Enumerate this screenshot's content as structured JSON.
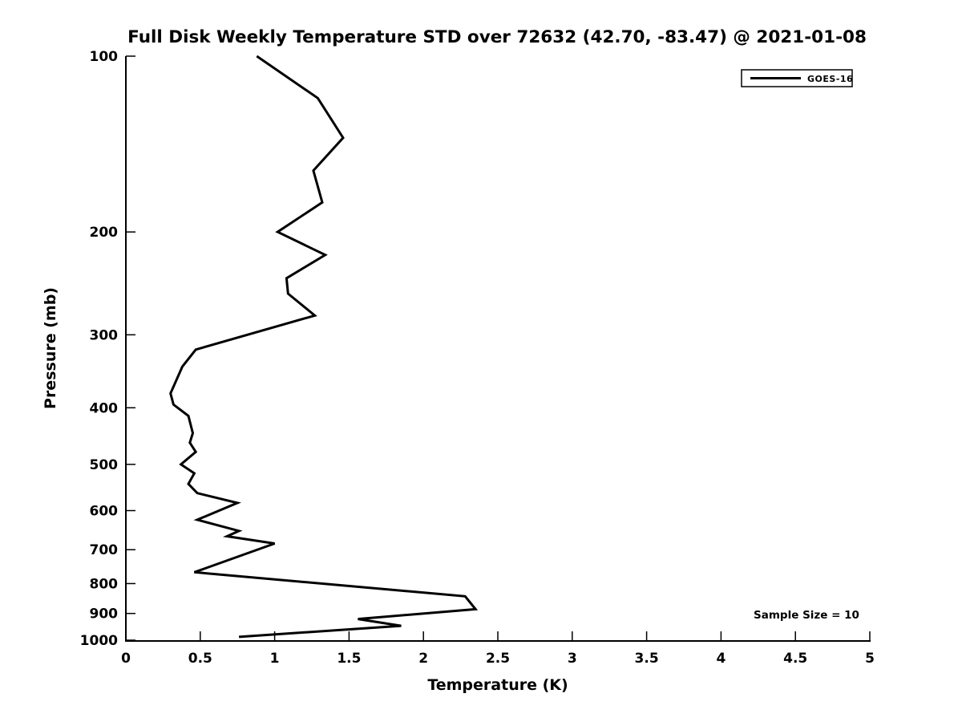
{
  "figure": {
    "background_color": "#ffffff",
    "foreground_color": "#000000"
  },
  "chart_data": {
    "type": "line",
    "title": "Full Disk Weekly Temperature STD over 72632 (42.70, -83.47) @ 2021-01-08",
    "xlabel": "Temperature (K)",
    "ylabel": "Pressure (mb)",
    "x_scale": "linear",
    "y_scale": "log",
    "y_inverted": true,
    "xlim": [
      0,
      5
    ],
    "ylim": [
      100,
      1000
    ],
    "x_ticks": [
      0,
      0.5,
      1,
      1.5,
      2,
      2.5,
      3,
      3.5,
      4,
      4.5,
      5
    ],
    "x_tick_labels": [
      "0",
      "0.5",
      "1",
      "1.5",
      "2",
      "2.5",
      "3",
      "3.5",
      "4",
      "4.5",
      "5"
    ],
    "y_ticks": [
      100,
      200,
      300,
      400,
      500,
      600,
      700,
      800,
      900,
      1000
    ],
    "y_tick_labels": [
      "100",
      "200",
      "300",
      "400",
      "500",
      "600",
      "700",
      "800",
      "900",
      "1000"
    ],
    "grid": false,
    "legend": {
      "position": "top-right",
      "entries": [
        {
          "label": "GOES-16",
          "color": "#000000",
          "line_width": 3
        }
      ]
    },
    "annotation": "Sample Size = 10",
    "series": [
      {
        "name": "GOES-16",
        "color": "#000000",
        "points_format": "[temperature_std_K, pressure_mb]",
        "points": [
          [
            0.88,
            100
          ],
          [
            1.29,
            118
          ],
          [
            1.46,
            138
          ],
          [
            1.26,
            157
          ],
          [
            1.32,
            178
          ],
          [
            1.02,
            200
          ],
          [
            1.34,
            219
          ],
          [
            1.08,
            240
          ],
          [
            1.09,
            255
          ],
          [
            1.27,
            278
          ],
          [
            0.47,
            318
          ],
          [
            0.38,
            340
          ],
          [
            0.3,
            378
          ],
          [
            0.32,
            395
          ],
          [
            0.42,
            413
          ],
          [
            0.45,
            442
          ],
          [
            0.43,
            459
          ],
          [
            0.47,
            476
          ],
          [
            0.37,
            500
          ],
          [
            0.46,
            518
          ],
          [
            0.42,
            540
          ],
          [
            0.48,
            560
          ],
          [
            0.75,
            582
          ],
          [
            0.48,
            622
          ],
          [
            0.76,
            650
          ],
          [
            0.68,
            664
          ],
          [
            1.0,
            683
          ],
          [
            0.46,
            765
          ],
          [
            2.28,
            841
          ],
          [
            2.35,
            885
          ],
          [
            1.56,
            920
          ],
          [
            1.85,
            945
          ],
          [
            0.76,
            987
          ]
        ]
      }
    ]
  }
}
